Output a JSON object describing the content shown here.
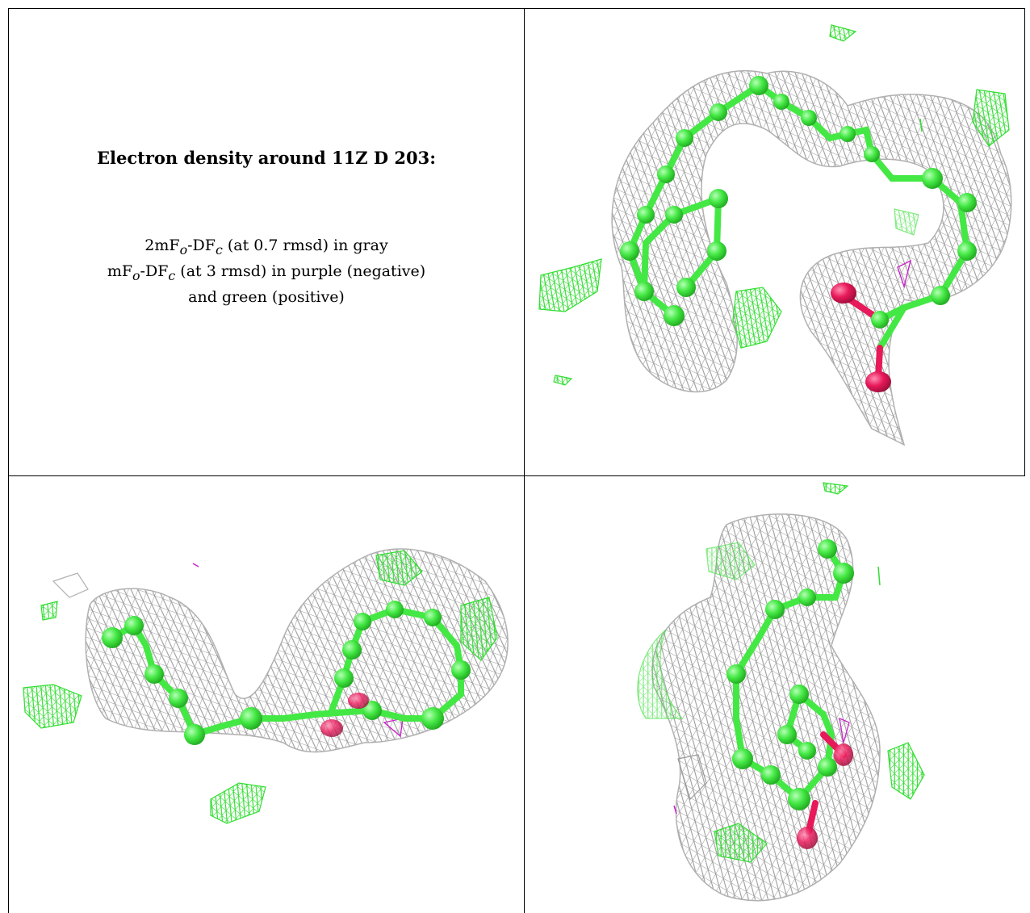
{
  "caption": {
    "title": "Electron density around 11Z D 203:",
    "line1": {
      "a": "2mF",
      "a_sub": "o",
      "b": "-DF",
      "b_sub": "c",
      "rest": " (at 0.7 rmsd) in gray"
    },
    "line2": {
      "a": "mF",
      "a_sub": "o",
      "b": "-DF",
      "b_sub": "c",
      "rest": " (at 3 rmsd) in purple (negative)"
    },
    "line3": "and green (positive)"
  },
  "colors": {
    "mesh_2fofc": "#9a9a9a",
    "mesh_positive": "#33dd33",
    "mesh_negative": "#cc22cc",
    "carbon": "#44e844",
    "oxygen": "#e8195a"
  },
  "views": [
    {
      "name": "view-top-right",
      "icon": "electron-density-mesh-icon"
    },
    {
      "name": "view-bottom-left",
      "icon": "electron-density-mesh-icon"
    },
    {
      "name": "view-bottom-right",
      "icon": "electron-density-mesh-icon"
    }
  ]
}
